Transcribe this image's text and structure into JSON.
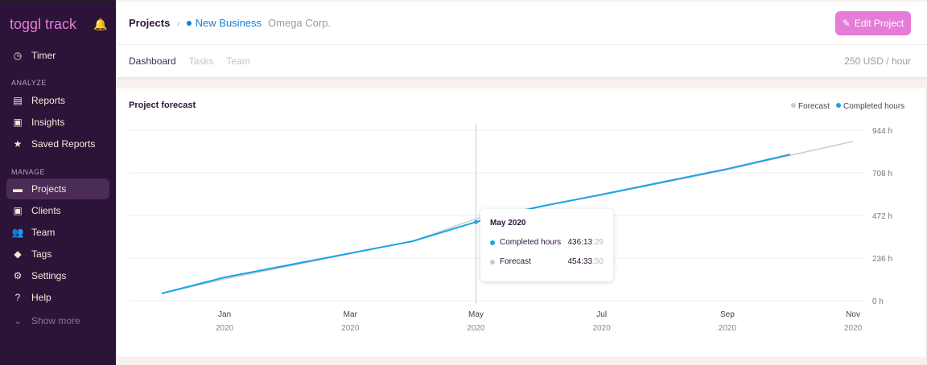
{
  "sidebar": {
    "logo": "toggl track",
    "timer": "Timer",
    "analyze": "ANALYZE",
    "reports": "Reports",
    "insights": "Insights",
    "saved_reports": "Saved Reports",
    "manage": "MANAGE",
    "projects": "Projects",
    "clients": "Clients",
    "team": "Team",
    "tags": "Tags",
    "settings": "Settings",
    "help": "Help",
    "show_more": "Show more"
  },
  "header": {
    "crumb": "Projects",
    "project": "New Business",
    "client": "Omega Corp.",
    "edit": "Edit Project",
    "project_color": "#0b83d9"
  },
  "tabs": {
    "dashboard": "Dashboard",
    "tasks": "Tasks",
    "team": "Team",
    "rate": "250 USD / hour"
  },
  "chart_data": {
    "type": "line",
    "title": "Project forecast",
    "legend_position": "top-right",
    "x_ticks": [
      {
        "month": "Jan",
        "year": "2020"
      },
      {
        "month": "Mar",
        "year": "2020"
      },
      {
        "month": "May",
        "year": "2020"
      },
      {
        "month": "Jul",
        "year": "2020"
      },
      {
        "month": "Sep",
        "year": "2020"
      },
      {
        "month": "Nov",
        "year": "2020"
      }
    ],
    "y_ticks": [
      "0 h",
      "236 h",
      "472 h",
      "708 h",
      "944 h"
    ],
    "ylim": [
      0,
      944
    ],
    "x": [
      "2019-12",
      "2020-01",
      "2020-02",
      "2020-03",
      "2020-04",
      "2020-05",
      "2020-06",
      "2020-07",
      "2020-08",
      "2020-09",
      "2020-10",
      "2020-11"
    ],
    "series": [
      {
        "name": "Forecast",
        "color": "#cccccc",
        "values": [
          40,
          120,
          190,
          260,
          330,
          454,
          520,
          585,
          655,
          725,
          805,
          882
        ]
      },
      {
        "name": "Completed hours",
        "color": "#1aa3e8",
        "values": [
          40,
          129,
          196,
          263,
          330,
          436,
          520,
          588,
          659,
          730,
          810,
          null
        ]
      }
    ],
    "tooltip": {
      "title": "May 2020",
      "rows": [
        {
          "label": "Completed hours",
          "main": "436:13",
          "sec": ":29"
        },
        {
          "label": "Forecast",
          "main": "454:33",
          "sec": ":50"
        }
      ]
    }
  }
}
